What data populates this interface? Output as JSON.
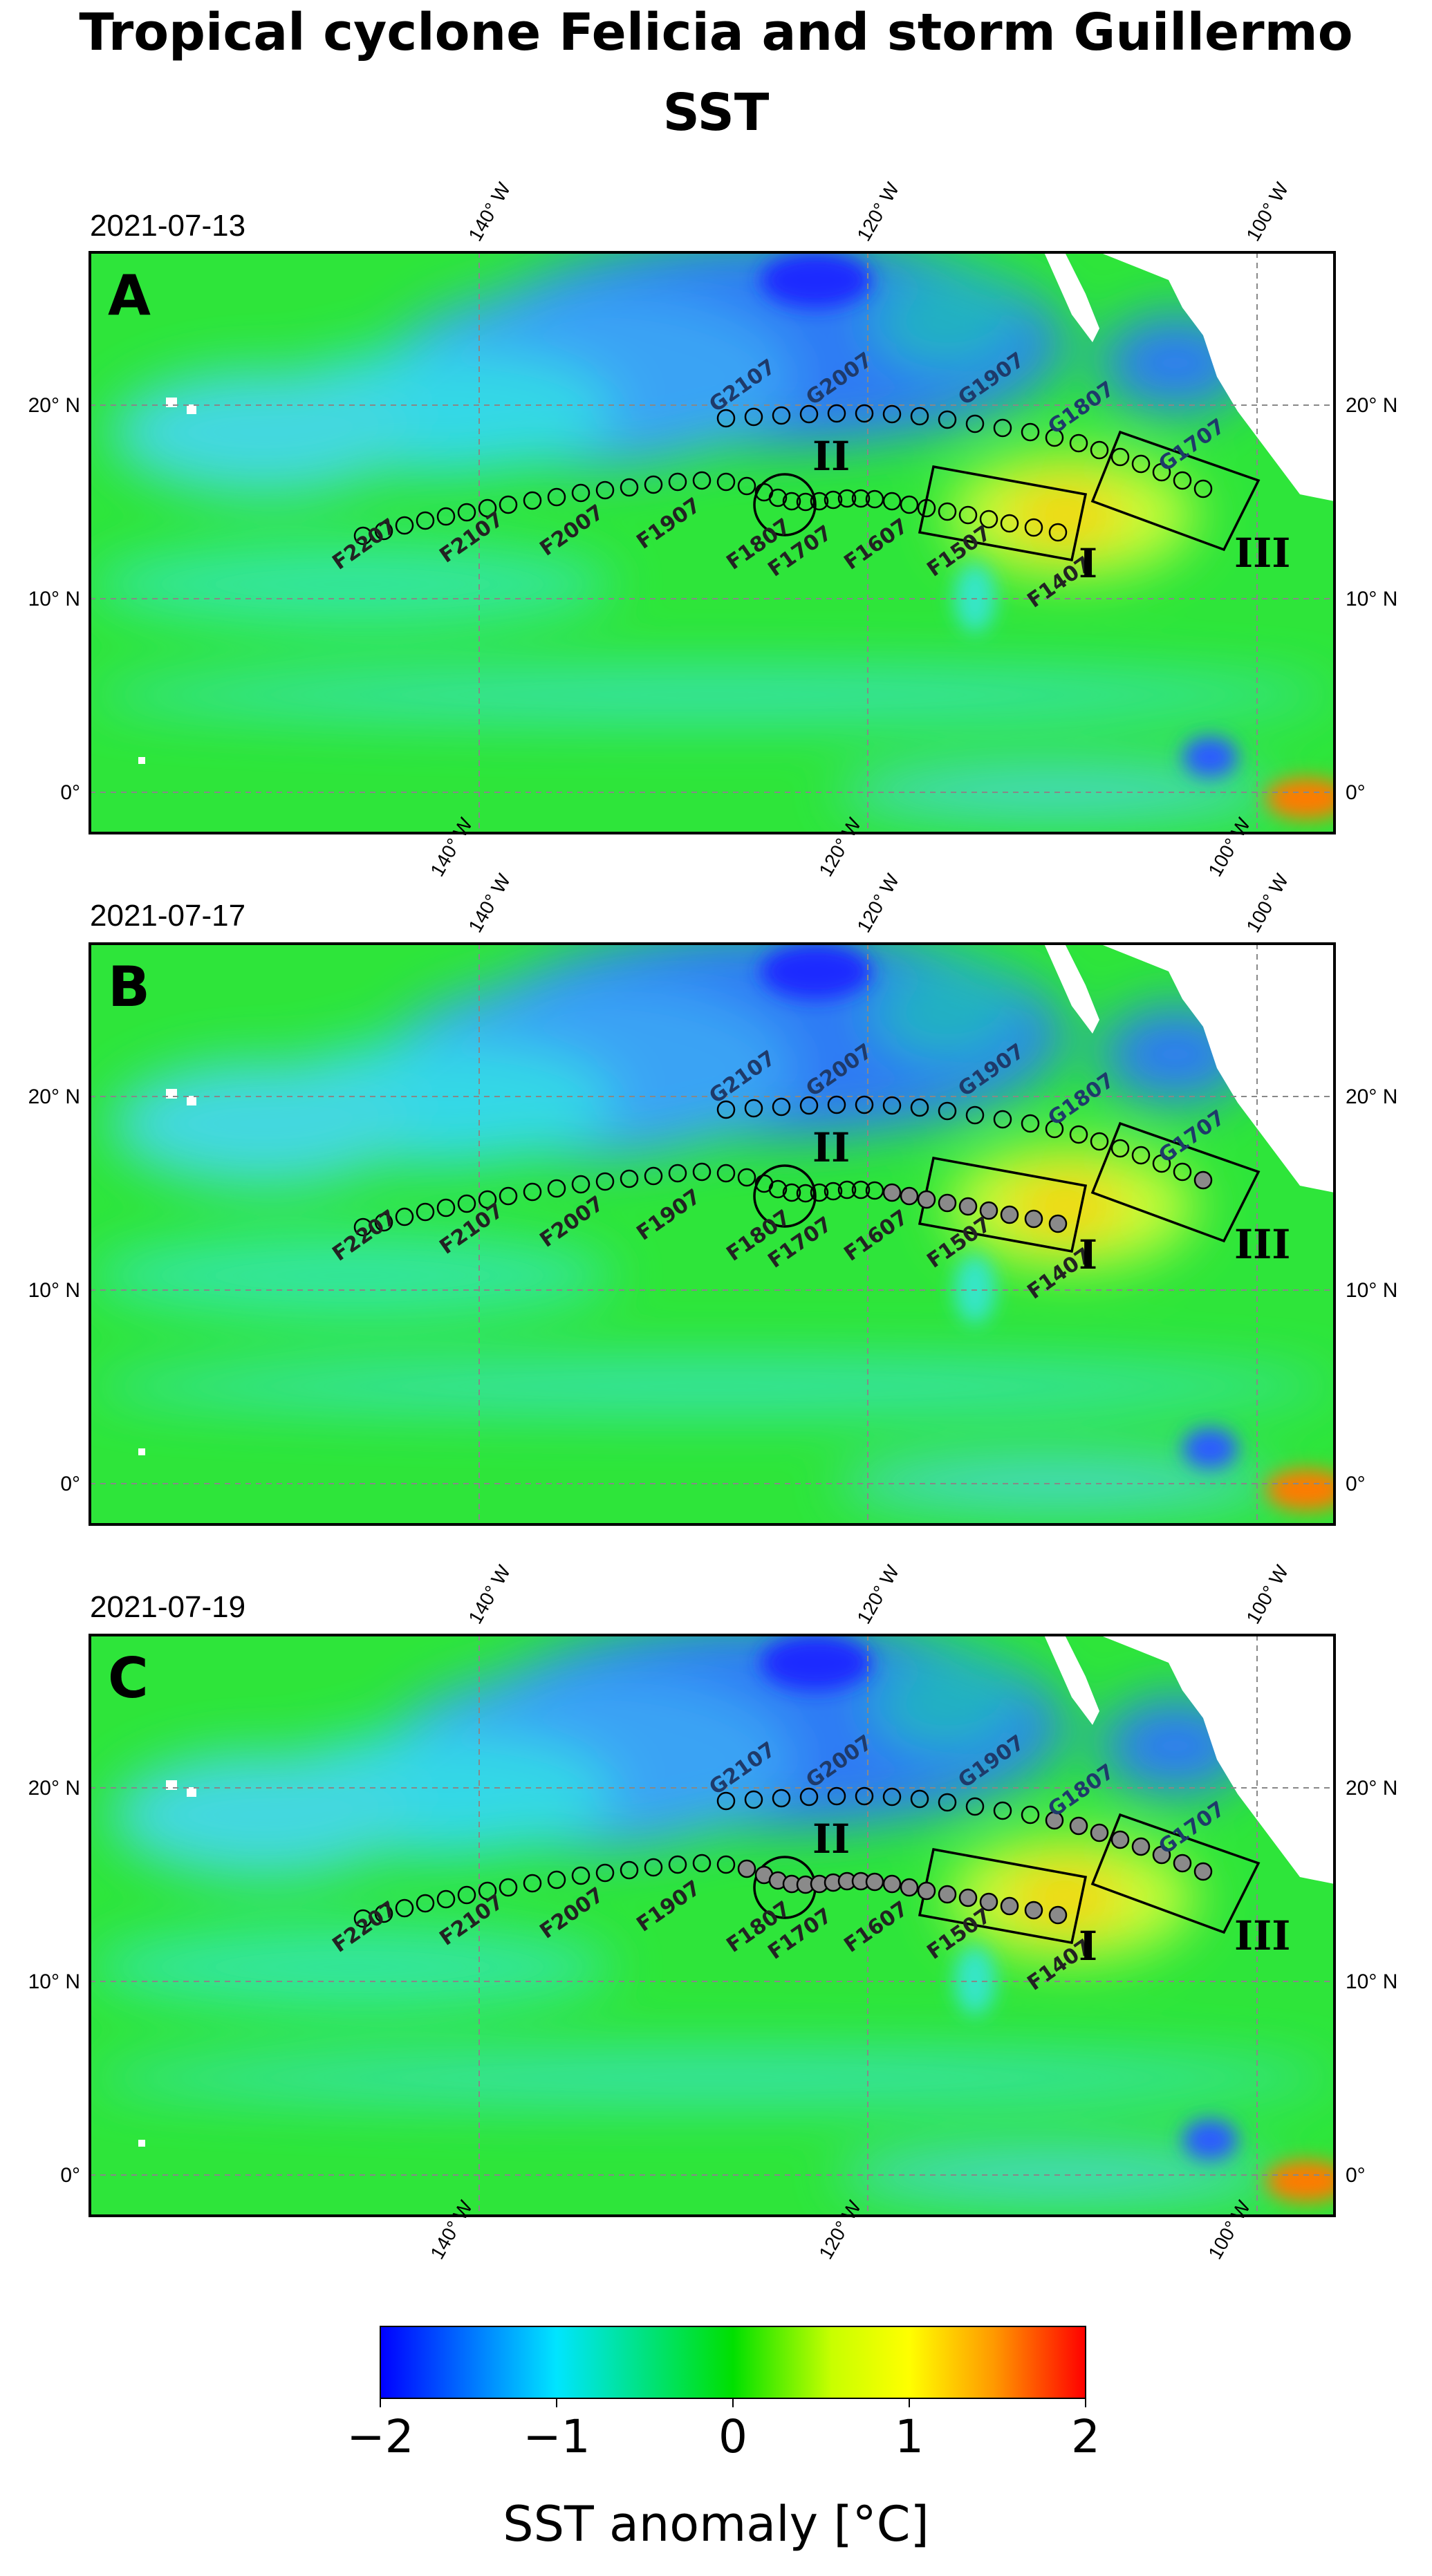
{
  "title": "Tropical cyclone Felicia and storm Guillermo",
  "subtitle": "SST",
  "lon_labels": [
    "140° W",
    "120° W",
    "100° W"
  ],
  "lat_labels": [
    "20° N",
    "10° N",
    "0°"
  ],
  "region_labels": [
    "I",
    "II",
    "III"
  ],
  "felicia_track_labels": [
    "F2207",
    "F2107",
    "F2007",
    "F1907",
    "F1807",
    "F1707",
    "F1607",
    "F1507",
    "F1407"
  ],
  "guillermo_track_labels": [
    "G2107",
    "G2007",
    "G1907",
    "G1807",
    "G1707"
  ],
  "panels": [
    {
      "letter": "A",
      "date": "2021-07-13"
    },
    {
      "letter": "B",
      "date": "2021-07-17"
    },
    {
      "letter": "C",
      "date": "2021-07-19"
    }
  ],
  "colorbar": {
    "title": "SST anomaly [°C]",
    "ticks": [
      "−2",
      "−1",
      "0",
      "1",
      "2"
    ],
    "range": [
      -2,
      2
    ],
    "colors": [
      "#0000ff",
      "#00e5ff",
      "#00e000",
      "#ffff00",
      "#ff0000"
    ]
  },
  "colors": {
    "land": "#ffffff",
    "ocean_base": "#2ee53a",
    "cold": "#2a6fff",
    "warm": "#ffd400"
  }
}
